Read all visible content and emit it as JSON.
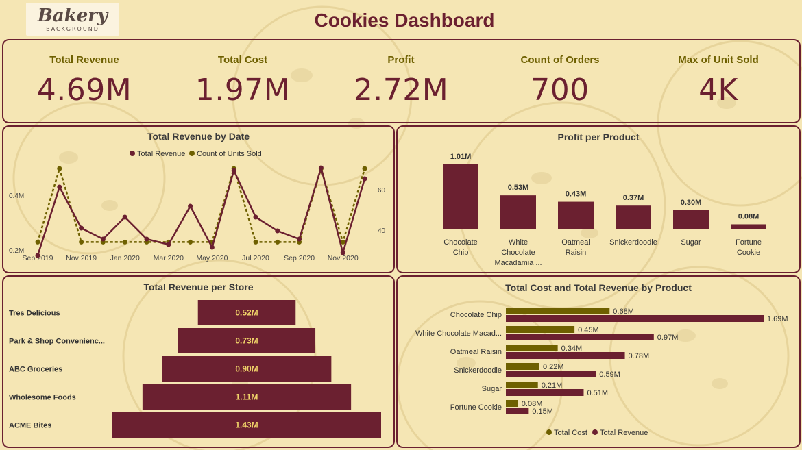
{
  "header": {
    "logo_text": "Bakery",
    "logo_subtext": "BACKGROUND",
    "title": "Cookies Dashboard"
  },
  "colors": {
    "background": "#f5e6b4",
    "maroon": "#6b2030",
    "olive": "#6e6000",
    "text": "#3a3a3a"
  },
  "kpis": [
    {
      "label": "Total Revenue",
      "value": "4.69M"
    },
    {
      "label": "Total Cost",
      "value": "1.97M"
    },
    {
      "label": "Profit",
      "value": "2.72M"
    },
    {
      "label": "Count of Orders",
      "value": "700"
    },
    {
      "label": "Max of Unit Sold",
      "value": "4K"
    }
  ],
  "chart_data": [
    {
      "type": "line",
      "title": "Total Revenue by Date",
      "legend": [
        "Total Revenue",
        "Count of Units Sold"
      ],
      "legend_position": "top",
      "x_tick_labels": [
        "Sep 2019",
        "Nov 2019",
        "Jan 2020",
        "Mar 2020",
        "May 2020",
        "Jul 2020",
        "Sep 2020",
        "Nov 2020"
      ],
      "y_left_ticks": [
        "0.2M",
        "0.4M"
      ],
      "y_right_ticks": [
        "40",
        "60"
      ],
      "x": [
        "2019-09",
        "2019-10",
        "2019-11",
        "2019-12",
        "2020-01",
        "2020-02",
        "2020-03",
        "2020-04",
        "2020-05",
        "2020-06",
        "2020-07",
        "2020-08",
        "2020-09",
        "2020-10",
        "2020-11",
        "2020-12"
      ],
      "series": [
        {
          "name": "Total Revenue",
          "axis": "left",
          "style": "solid",
          "color": "#6b2030",
          "values": [
            0.18,
            0.43,
            0.28,
            0.24,
            0.32,
            0.24,
            0.22,
            0.36,
            0.21,
            0.49,
            0.32,
            0.27,
            0.24,
            0.5,
            0.19,
            0.46
          ]
        },
        {
          "name": "Count of Units Sold",
          "axis": "right",
          "style": "dashed",
          "color": "#6e6000",
          "values": [
            34,
            71,
            34,
            34,
            34,
            34,
            34,
            34,
            34,
            71,
            34,
            34,
            34,
            71,
            34,
            71
          ]
        }
      ]
    },
    {
      "type": "bar",
      "title": "Profit per Product",
      "categories": [
        "Chocolate Chip",
        "White Chocolate Macadamia ...",
        "Oatmeal Raisin",
        "Snickerdoodle",
        "Sugar",
        "Fortune Cookie"
      ],
      "category_lines": [
        [
          "Chocolate",
          "Chip"
        ],
        [
          "White",
          "Chocolate",
          "Macadamia ..."
        ],
        [
          "Oatmeal",
          "Raisin"
        ],
        [
          "Snickerdoodle"
        ],
        [
          "Sugar"
        ],
        [
          "Fortune",
          "Cookie"
        ]
      ],
      "values": [
        1.01,
        0.53,
        0.43,
        0.37,
        0.3,
        0.08
      ],
      "data_labels": [
        "1.01M",
        "0.53M",
        "0.43M",
        "0.37M",
        "0.30M",
        "0.08M"
      ]
    },
    {
      "type": "bar",
      "orientation": "horizontal-funnel",
      "title": "Total Revenue per Store",
      "categories": [
        "Tres Delicious",
        "Park & Shop Convenienc...",
        "ABC Groceries",
        "Wholesome Foods",
        "ACME Bites"
      ],
      "values": [
        0.52,
        0.73,
        0.9,
        1.11,
        1.43
      ],
      "data_labels": [
        "0.52M",
        "0.73M",
        "0.90M",
        "1.11M",
        "1.43M"
      ]
    },
    {
      "type": "bar",
      "orientation": "horizontal",
      "title": "Total Cost and Total Revenue by Product",
      "categories": [
        "Chocolate Chip",
        "White Chocolate Macad...",
        "Oatmeal Raisin",
        "Snickerdoodle",
        "Sugar",
        "Fortune Cookie"
      ],
      "legend_position": "bottom",
      "series": [
        {
          "name": "Total Cost",
          "color": "#6e6000",
          "values": [
            0.68,
            0.45,
            0.34,
            0.22,
            0.21,
            0.08
          ],
          "data_labels": [
            "0.68M",
            "0.45M",
            "0.34M",
            "0.22M",
            "0.21M",
            "0.08M"
          ]
        },
        {
          "name": "Total Revenue",
          "color": "#6b2030",
          "values": [
            1.69,
            0.97,
            0.78,
            0.59,
            0.51,
            0.15
          ],
          "data_labels": [
            "1.69M",
            "0.97M",
            "0.78M",
            "0.59M",
            "0.51M",
            "0.15M"
          ]
        }
      ]
    }
  ]
}
